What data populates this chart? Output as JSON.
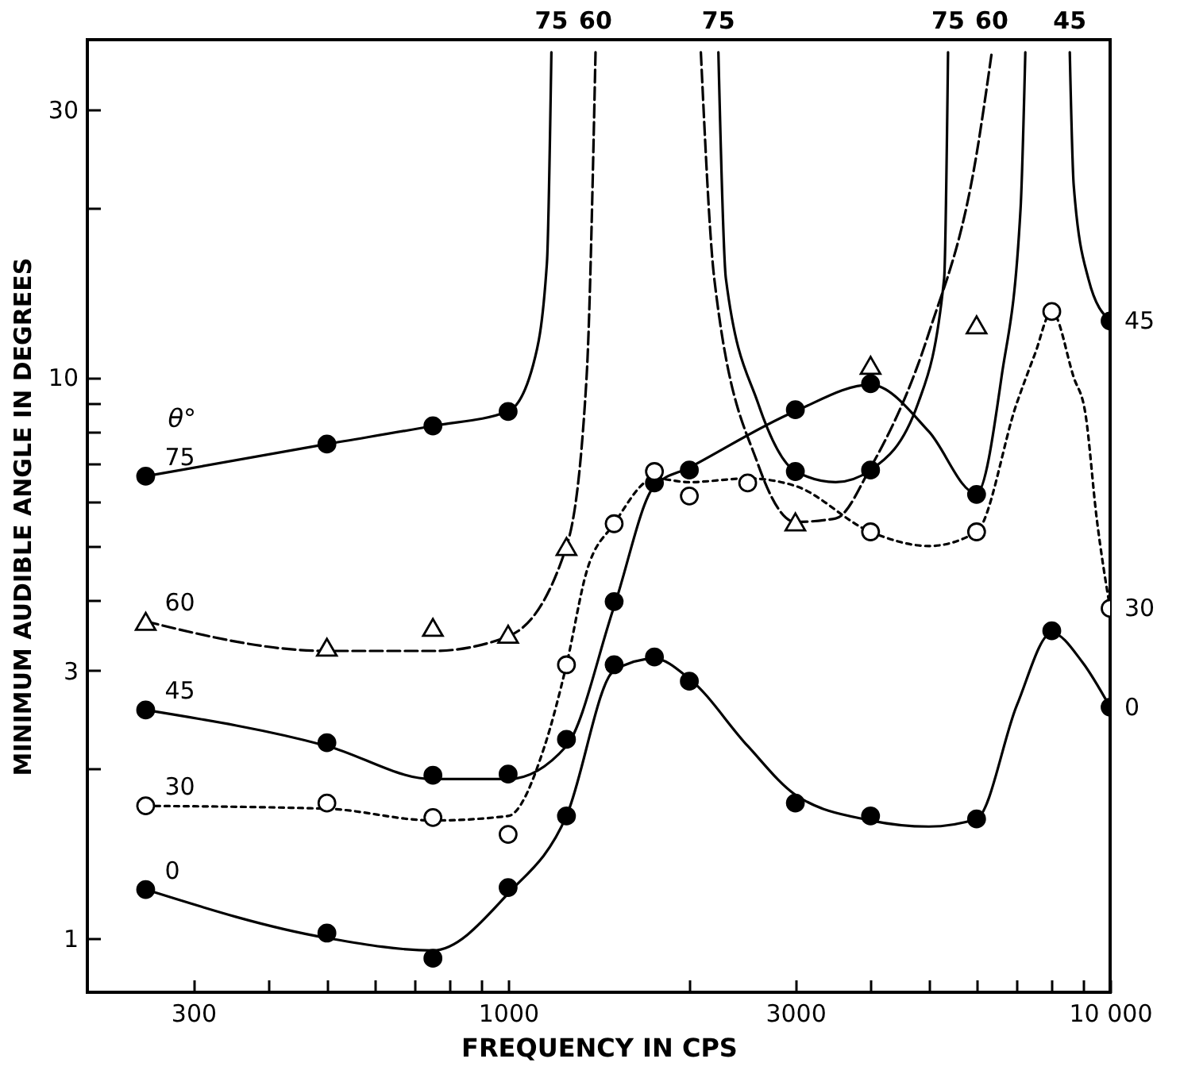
{
  "chart_data": {
    "type": "line",
    "xlabel": "FREQUENCY IN CPS",
    "ylabel": "MINIMUM AUDIBLE ANGLE IN DEGREES",
    "log": "xy",
    "grid": false,
    "xlim": [
      200,
      10000
    ],
    "ylim": [
      0.8,
      40
    ],
    "xticks": [
      {
        "value": 300,
        "label": "300"
      },
      {
        "value": 400,
        "label": null
      },
      {
        "value": 500,
        "label": null
      },
      {
        "value": 600,
        "label": null
      },
      {
        "value": 700,
        "label": null
      },
      {
        "value": 800,
        "label": null
      },
      {
        "value": 900,
        "label": null
      },
      {
        "value": 1000,
        "label": "1000"
      },
      {
        "value": 2000,
        "label": null
      },
      {
        "value": 3000,
        "label": "3000"
      },
      {
        "value": 4000,
        "label": null
      },
      {
        "value": 5000,
        "label": null
      },
      {
        "value": 6000,
        "label": null
      },
      {
        "value": 7000,
        "label": null
      },
      {
        "value": 8000,
        "label": null
      },
      {
        "value": 9000,
        "label": null
      },
      {
        "value": 10000,
        "label": "10 000"
      }
    ],
    "yticks": [
      1,
      {
        "value": 2,
        "label": null
      },
      3,
      {
        "value": 4,
        "label": null
      },
      {
        "value": 5,
        "label": null
      },
      {
        "value": 6,
        "label": null
      },
      {
        "value": 7,
        "label": null
      },
      {
        "value": 8,
        "label": null
      },
      {
        "value": 9,
        "label": null
      },
      10,
      {
        "value": 20,
        "label": null
      },
      30
    ],
    "series": [
      {
        "type": "line",
        "color": "#000000",
        "line_style": "solid",
        "x": [
          250,
          500,
          750,
          1000,
          1100,
          1160,
          1180,
          null,
          2235,
          2300,
          2600,
          3000,
          3500,
          4000,
          4800,
          5300,
          5380
        ],
        "values": [
          6.66,
          7.6,
          8.19,
          8.69,
          10.5,
          16,
          38,
          null,
          38,
          15,
          9,
          6.8,
          6.5,
          6.83,
          9,
          15,
          38
        ]
      },
      {
        "type": "line",
        "color": "#000000",
        "line_style": "dashed",
        "x": [
          250,
          500,
          750,
          1000,
          1250,
          1350,
          1397,
          null,
          2090,
          2200,
          2600,
          3000,
          3500,
          4000,
          5000,
          6000,
          6360
        ],
        "values": [
          3.67,
          3.25,
          3.25,
          3.45,
          4.99,
          10,
          38,
          null,
          38,
          15,
          7,
          5.52,
          5.6,
          6.9,
          12,
          25,
          38
        ]
      },
      {
        "type": "line",
        "color": "#000000",
        "line_style": "solid",
        "x": [
          250,
          500,
          750,
          1000,
          1250,
          1500,
          1750,
          2000,
          3000,
          4000,
          5000,
          6000,
          6600,
          7100,
          7230,
          null,
          8570,
          8700,
          9200,
          10000
        ],
        "values": [
          2.55,
          2.2,
          1.92,
          1.92,
          2.2,
          3.9,
          6.4,
          6.9,
          8.7,
          9.7,
          8,
          6.2,
          10,
          20,
          38,
          null,
          38,
          22,
          15,
          12.6
        ]
      },
      {
        "type": "line",
        "color": "#000000",
        "line_style": "dotted",
        "x": [
          250,
          500,
          750,
          1000,
          1150,
          1250,
          1350,
          1500,
          1750,
          2000,
          2500,
          3000,
          4000,
          5000,
          6000,
          7000,
          7500,
          8000,
          8700,
          9100,
          9500,
          10000
        ],
        "values": [
          1.72,
          1.7,
          1.62,
          1.65,
          2.2,
          3.07,
          4.5,
          5.48,
          6.6,
          6.5,
          6.6,
          6.4,
          5.3,
          5,
          5.3,
          9,
          11,
          13.1,
          10,
          8.6,
          5.6,
          3.87
        ]
      },
      {
        "type": "line",
        "color": "#000000",
        "line_style": "solid",
        "x": [
          250,
          500,
          750,
          1000,
          1250,
          1500,
          1750,
          2000,
          2500,
          3000,
          4000,
          5000,
          6000,
          7000,
          8000,
          9000,
          10000
        ],
        "values": [
          1.22,
          1,
          0.95,
          1.2,
          1.65,
          3,
          3.15,
          2.9,
          2.2,
          1.8,
          1.62,
          1.58,
          1.63,
          2.6,
          3.5,
          3.1,
          2.58
        ]
      },
      {
        "type": "scatter",
        "name": "75",
        "color": "#000000",
        "marker": "circle",
        "x": [
          250,
          500,
          750,
          1000,
          3000,
          4000
        ],
        "values": [
          6.66,
          7.6,
          8.19,
          8.69,
          6.79,
          6.83
        ]
      },
      {
        "type": "scatter",
        "name": "60",
        "color": "#ffffff",
        "marker": "triangle",
        "x": [
          250,
          500,
          750,
          1000,
          1250,
          3000,
          4000,
          6000
        ],
        "values": [
          3.67,
          3.3,
          3.58,
          3.48,
          4.99,
          5.52,
          10.5,
          12.4
        ]
      },
      {
        "type": "scatter",
        "name": "45",
        "color": "#000000",
        "marker": "circle",
        "x": [
          250,
          500,
          750,
          1000,
          1250,
          1500,
          1750,
          2000,
          3000,
          4000,
          6000,
          10000
        ],
        "values": [
          2.55,
          2.23,
          1.95,
          1.96,
          2.26,
          3.98,
          6.48,
          6.83,
          8.75,
          9.74,
          6.18,
          12.6
        ]
      },
      {
        "type": "scatter",
        "name": "30",
        "color": "#ffffff",
        "marker": "circle",
        "x": [
          250,
          500,
          750,
          1000,
          1250,
          1500,
          1750,
          2000,
          2500,
          4000,
          6000,
          8000,
          10000
        ],
        "values": [
          1.72,
          1.74,
          1.64,
          1.53,
          3.07,
          5.48,
          6.79,
          6.14,
          6.48,
          5.3,
          5.3,
          13.1,
          3.87
        ]
      },
      {
        "type": "scatter",
        "name": "0",
        "color": "#000000",
        "marker": "circle",
        "x": [
          250,
          500,
          750,
          1000,
          1250,
          1500,
          1750,
          2000,
          3000,
          4000,
          6000,
          8000,
          10000
        ],
        "values": [
          1.22,
          1.02,
          0.92,
          1.23,
          1.65,
          3.07,
          3.17,
          2.87,
          1.74,
          1.65,
          1.63,
          3.53,
          2.58
        ]
      }
    ],
    "annotations": [
      "θ°",
      {
        "text": "75",
        "x": 1180,
        "y": 38
      },
      {
        "text": "60",
        "x": 1397,
        "y": 38
      },
      {
        "text": "75",
        "x": 2235,
        "y": 38
      },
      {
        "text": "75",
        "x": 5380,
        "y": 38
      },
      {
        "text": "60",
        "x": 6360,
        "y": 38
      },
      {
        "text": "45",
        "x": 8570,
        "y": 38
      }
    ]
  }
}
